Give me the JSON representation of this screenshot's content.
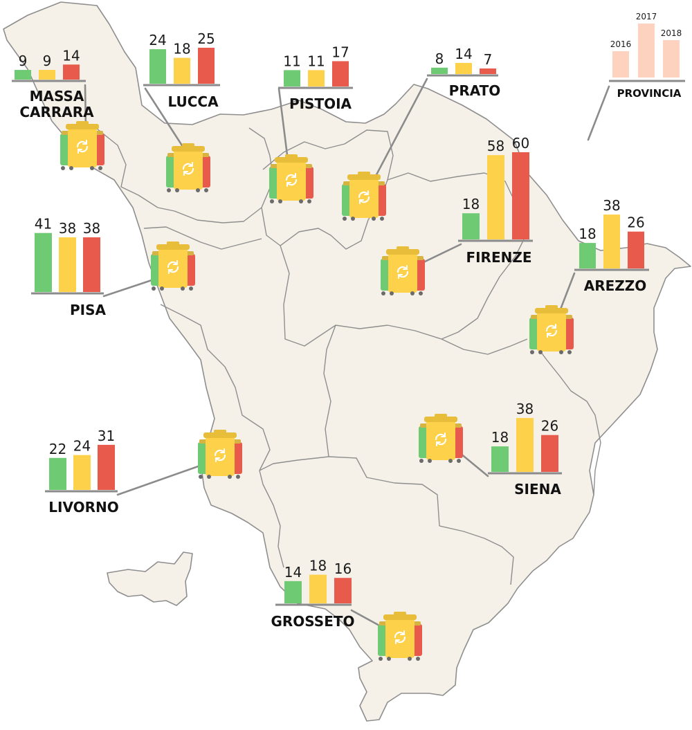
{
  "colors": {
    "y2016": "#6fca74",
    "y2017": "#fdd149",
    "y2018": "#e85a4c",
    "legend_bar": "#fdd3c0",
    "map_fill": "#f5f1e8",
    "map_border": "#8e8e8e"
  },
  "icon": "recycling-bin-icon",
  "chart_data": [
    {
      "type": "bar",
      "province": "MASSA CARRARA",
      "label_lines": [
        "MASSA",
        "CARRARA"
      ],
      "categories": [
        "2016",
        "2017",
        "2018"
      ],
      "values": [
        9,
        9,
        14
      ]
    },
    {
      "type": "bar",
      "province": "LUCCA",
      "label_lines": [
        "LUCCA"
      ],
      "categories": [
        "2016",
        "2017",
        "2018"
      ],
      "values": [
        24,
        18,
        25
      ]
    },
    {
      "type": "bar",
      "province": "PISTOIA",
      "label_lines": [
        "PISTOIA"
      ],
      "categories": [
        "2016",
        "2017",
        "2018"
      ],
      "values": [
        11,
        11,
        17
      ]
    },
    {
      "type": "bar",
      "province": "PRATO",
      "label_lines": [
        "PRATO"
      ],
      "categories": [
        "2016",
        "2017",
        "2018"
      ],
      "values": [
        8,
        14,
        7
      ]
    },
    {
      "type": "bar",
      "province": "PISA",
      "label_lines": [
        "PISA"
      ],
      "categories": [
        "2016",
        "2017",
        "2018"
      ],
      "values": [
        41,
        38,
        38
      ]
    },
    {
      "type": "bar",
      "province": "FIRENZE",
      "label_lines": [
        "FIRENZE"
      ],
      "categories": [
        "2016",
        "2017",
        "2018"
      ],
      "values": [
        18,
        58,
        60
      ]
    },
    {
      "type": "bar",
      "province": "AREZZO",
      "label_lines": [
        "AREZZO"
      ],
      "categories": [
        "2016",
        "2017",
        "2018"
      ],
      "values": [
        18,
        38,
        26
      ]
    },
    {
      "type": "bar",
      "province": "LIVORNO",
      "label_lines": [
        "LIVORNO"
      ],
      "categories": [
        "2016",
        "2017",
        "2018"
      ],
      "values": [
        22,
        24,
        31
      ]
    },
    {
      "type": "bar",
      "province": "SIENA",
      "label_lines": [
        "SIENA"
      ],
      "categories": [
        "2016",
        "2017",
        "2018"
      ],
      "values": [
        18,
        38,
        26
      ]
    },
    {
      "type": "bar",
      "province": "GROSSETO",
      "label_lines": [
        "GROSSETO"
      ],
      "categories": [
        "2016",
        "2017",
        "2018"
      ],
      "values": [
        14,
        18,
        16
      ]
    }
  ],
  "legend": {
    "years": [
      "2016",
      "2017",
      "2018"
    ],
    "label": "PROVINCIA"
  }
}
